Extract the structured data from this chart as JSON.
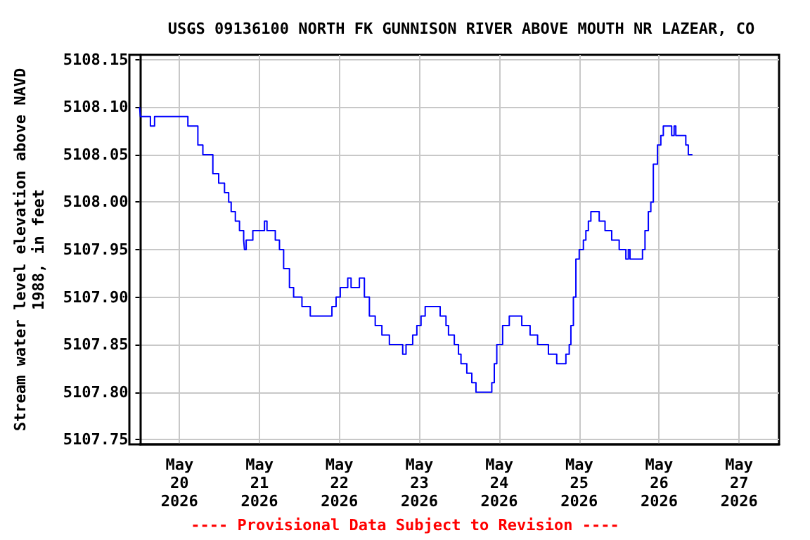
{
  "chart_data": {
    "type": "step",
    "title": "USGS 09136100 NORTH FK GUNNISON RIVER ABOVE MOUTH NR LAZEAR, CO",
    "ylabel": "Stream water level elevation above NAVD\n1988, in feet",
    "annotations": [
      "---- Provisional Data Subject to Revision ----"
    ],
    "xlim": [
      "2026-05-19T12:00",
      "2026-05-27T12:00"
    ],
    "xticks": [
      {
        "value": "2026-05-20",
        "label": "May\n20\n2026"
      },
      {
        "value": "2026-05-21",
        "label": "May\n21\n2026"
      },
      {
        "value": "2026-05-22",
        "label": "May\n22\n2026"
      },
      {
        "value": "2026-05-23",
        "label": "May\n23\n2026"
      },
      {
        "value": "2026-05-24",
        "label": "May\n24\n2026"
      },
      {
        "value": "2026-05-25",
        "label": "May\n25\n2026"
      },
      {
        "value": "2026-05-26",
        "label": "May\n26\n2026"
      },
      {
        "value": "2026-05-27",
        "label": "May\n27\n2026"
      }
    ],
    "ylim": [
      5107.745,
      5108.155
    ],
    "yticks": [
      {
        "value": 5107.75,
        "label": "5107.75"
      },
      {
        "value": 5107.8,
        "label": "5107.80"
      },
      {
        "value": 5107.85,
        "label": "5107.85"
      },
      {
        "value": 5107.9,
        "label": "5107.90"
      },
      {
        "value": 5107.95,
        "label": "5107.95"
      },
      {
        "value": 5108.0,
        "label": "5108.00"
      },
      {
        "value": 5108.05,
        "label": "5108.05"
      },
      {
        "value": 5108.1,
        "label": "5108.10"
      },
      {
        "value": 5108.15,
        "label": "5108.15"
      }
    ],
    "grid": true,
    "line_style": "solid",
    "series": [
      {
        "color": "#0000ff",
        "x": [
          "2026-05-19T12:00",
          "2026-05-19T12:15",
          "2026-05-19T15:15",
          "2026-05-19T16:30",
          "2026-05-20T02:30",
          "2026-05-20T05:30",
          "2026-05-20T07:00",
          "2026-05-20T10:00",
          "2026-05-20T11:45",
          "2026-05-20T13:30",
          "2026-05-20T14:45",
          "2026-05-20T15:30",
          "2026-05-20T16:45",
          "2026-05-20T18:00",
          "2026-05-20T19:15",
          "2026-05-20T19:30",
          "2026-05-20T20:00",
          "2026-05-20T22:00",
          "2026-05-21T01:30",
          "2026-05-21T02:15",
          "2026-05-21T04:45",
          "2026-05-21T06:00",
          "2026-05-21T07:15",
          "2026-05-21T09:00",
          "2026-05-21T10:15",
          "2026-05-21T12:45",
          "2026-05-21T15:15",
          "2026-05-21T21:45",
          "2026-05-21T23:00",
          "2026-05-22T00:15",
          "2026-05-22T02:30",
          "2026-05-22T03:30",
          "2026-05-22T06:00",
          "2026-05-22T07:30",
          "2026-05-22T09:00",
          "2026-05-22T10:45",
          "2026-05-22T12:45",
          "2026-05-22T15:00",
          "2026-05-22T19:00",
          "2026-05-22T20:00",
          "2026-05-22T22:00",
          "2026-05-22T23:15",
          "2026-05-23T00:30",
          "2026-05-23T01:45",
          "2026-05-23T06:15",
          "2026-05-23T08:00",
          "2026-05-23T08:45",
          "2026-05-23T10:30",
          "2026-05-23T11:45",
          "2026-05-23T12:30",
          "2026-05-23T14:15",
          "2026-05-23T15:45",
          "2026-05-23T17:00",
          "2026-05-23T21:45",
          "2026-05-23T22:30",
          "2026-05-23T23:15",
          "2026-05-24T01:00",
          "2026-05-24T03:00",
          "2026-05-24T06:45",
          "2026-05-24T09:15",
          "2026-05-24T11:30",
          "2026-05-24T14:45",
          "2026-05-24T17:15",
          "2026-05-24T20:00",
          "2026-05-24T21:00",
          "2026-05-24T21:30",
          "2026-05-24T22:15",
          "2026-05-24T23:00",
          "2026-05-25T00:00",
          "2026-05-25T01:15",
          "2026-05-25T02:00",
          "2026-05-25T02:45",
          "2026-05-25T03:30",
          "2026-05-25T06:00",
          "2026-05-25T07:45",
          "2026-05-25T09:45",
          "2026-05-25T12:00",
          "2026-05-25T14:00",
          "2026-05-25T14:45",
          "2026-05-25T15:15",
          "2026-05-25T19:00",
          "2026-05-25T19:45",
          "2026-05-25T20:45",
          "2026-05-25T21:30",
          "2026-05-25T22:15",
          "2026-05-25T23:30",
          "2026-05-26T00:30",
          "2026-05-26T01:15",
          "2026-05-26T03:45",
          "2026-05-26T04:30",
          "2026-05-26T05:00",
          "2026-05-26T08:00",
          "2026-05-26T08:45",
          "2026-05-26T10:00"
        ],
        "values": [
          5108.1,
          5108.09,
          5108.08,
          5108.09,
          5108.08,
          5108.06,
          5108.05,
          5108.03,
          5108.02,
          5108.01,
          5108.0,
          5107.99,
          5107.98,
          5107.97,
          5107.96,
          5107.95,
          5107.96,
          5107.97,
          5107.98,
          5107.97,
          5107.96,
          5107.95,
          5107.93,
          5107.91,
          5107.9,
          5107.89,
          5107.88,
          5107.89,
          5107.9,
          5107.91,
          5107.92,
          5107.91,
          5107.92,
          5107.9,
          5107.88,
          5107.87,
          5107.86,
          5107.85,
          5107.84,
          5107.85,
          5107.86,
          5107.87,
          5107.88,
          5107.89,
          5107.88,
          5107.87,
          5107.86,
          5107.85,
          5107.84,
          5107.83,
          5107.82,
          5107.81,
          5107.8,
          5107.81,
          5107.83,
          5107.85,
          5107.87,
          5107.88,
          5107.87,
          5107.86,
          5107.85,
          5107.84,
          5107.83,
          5107.84,
          5107.85,
          5107.87,
          5107.9,
          5107.94,
          5107.95,
          5107.96,
          5107.97,
          5107.98,
          5107.99,
          5107.98,
          5107.97,
          5107.96,
          5107.95,
          5107.94,
          5107.95,
          5107.94,
          5107.95,
          5107.97,
          5107.99,
          5108.0,
          5108.04,
          5108.06,
          5108.07,
          5108.08,
          5108.07,
          5108.08,
          5108.07,
          5108.06,
          5108.05,
          5108.05
        ]
      }
    ]
  }
}
